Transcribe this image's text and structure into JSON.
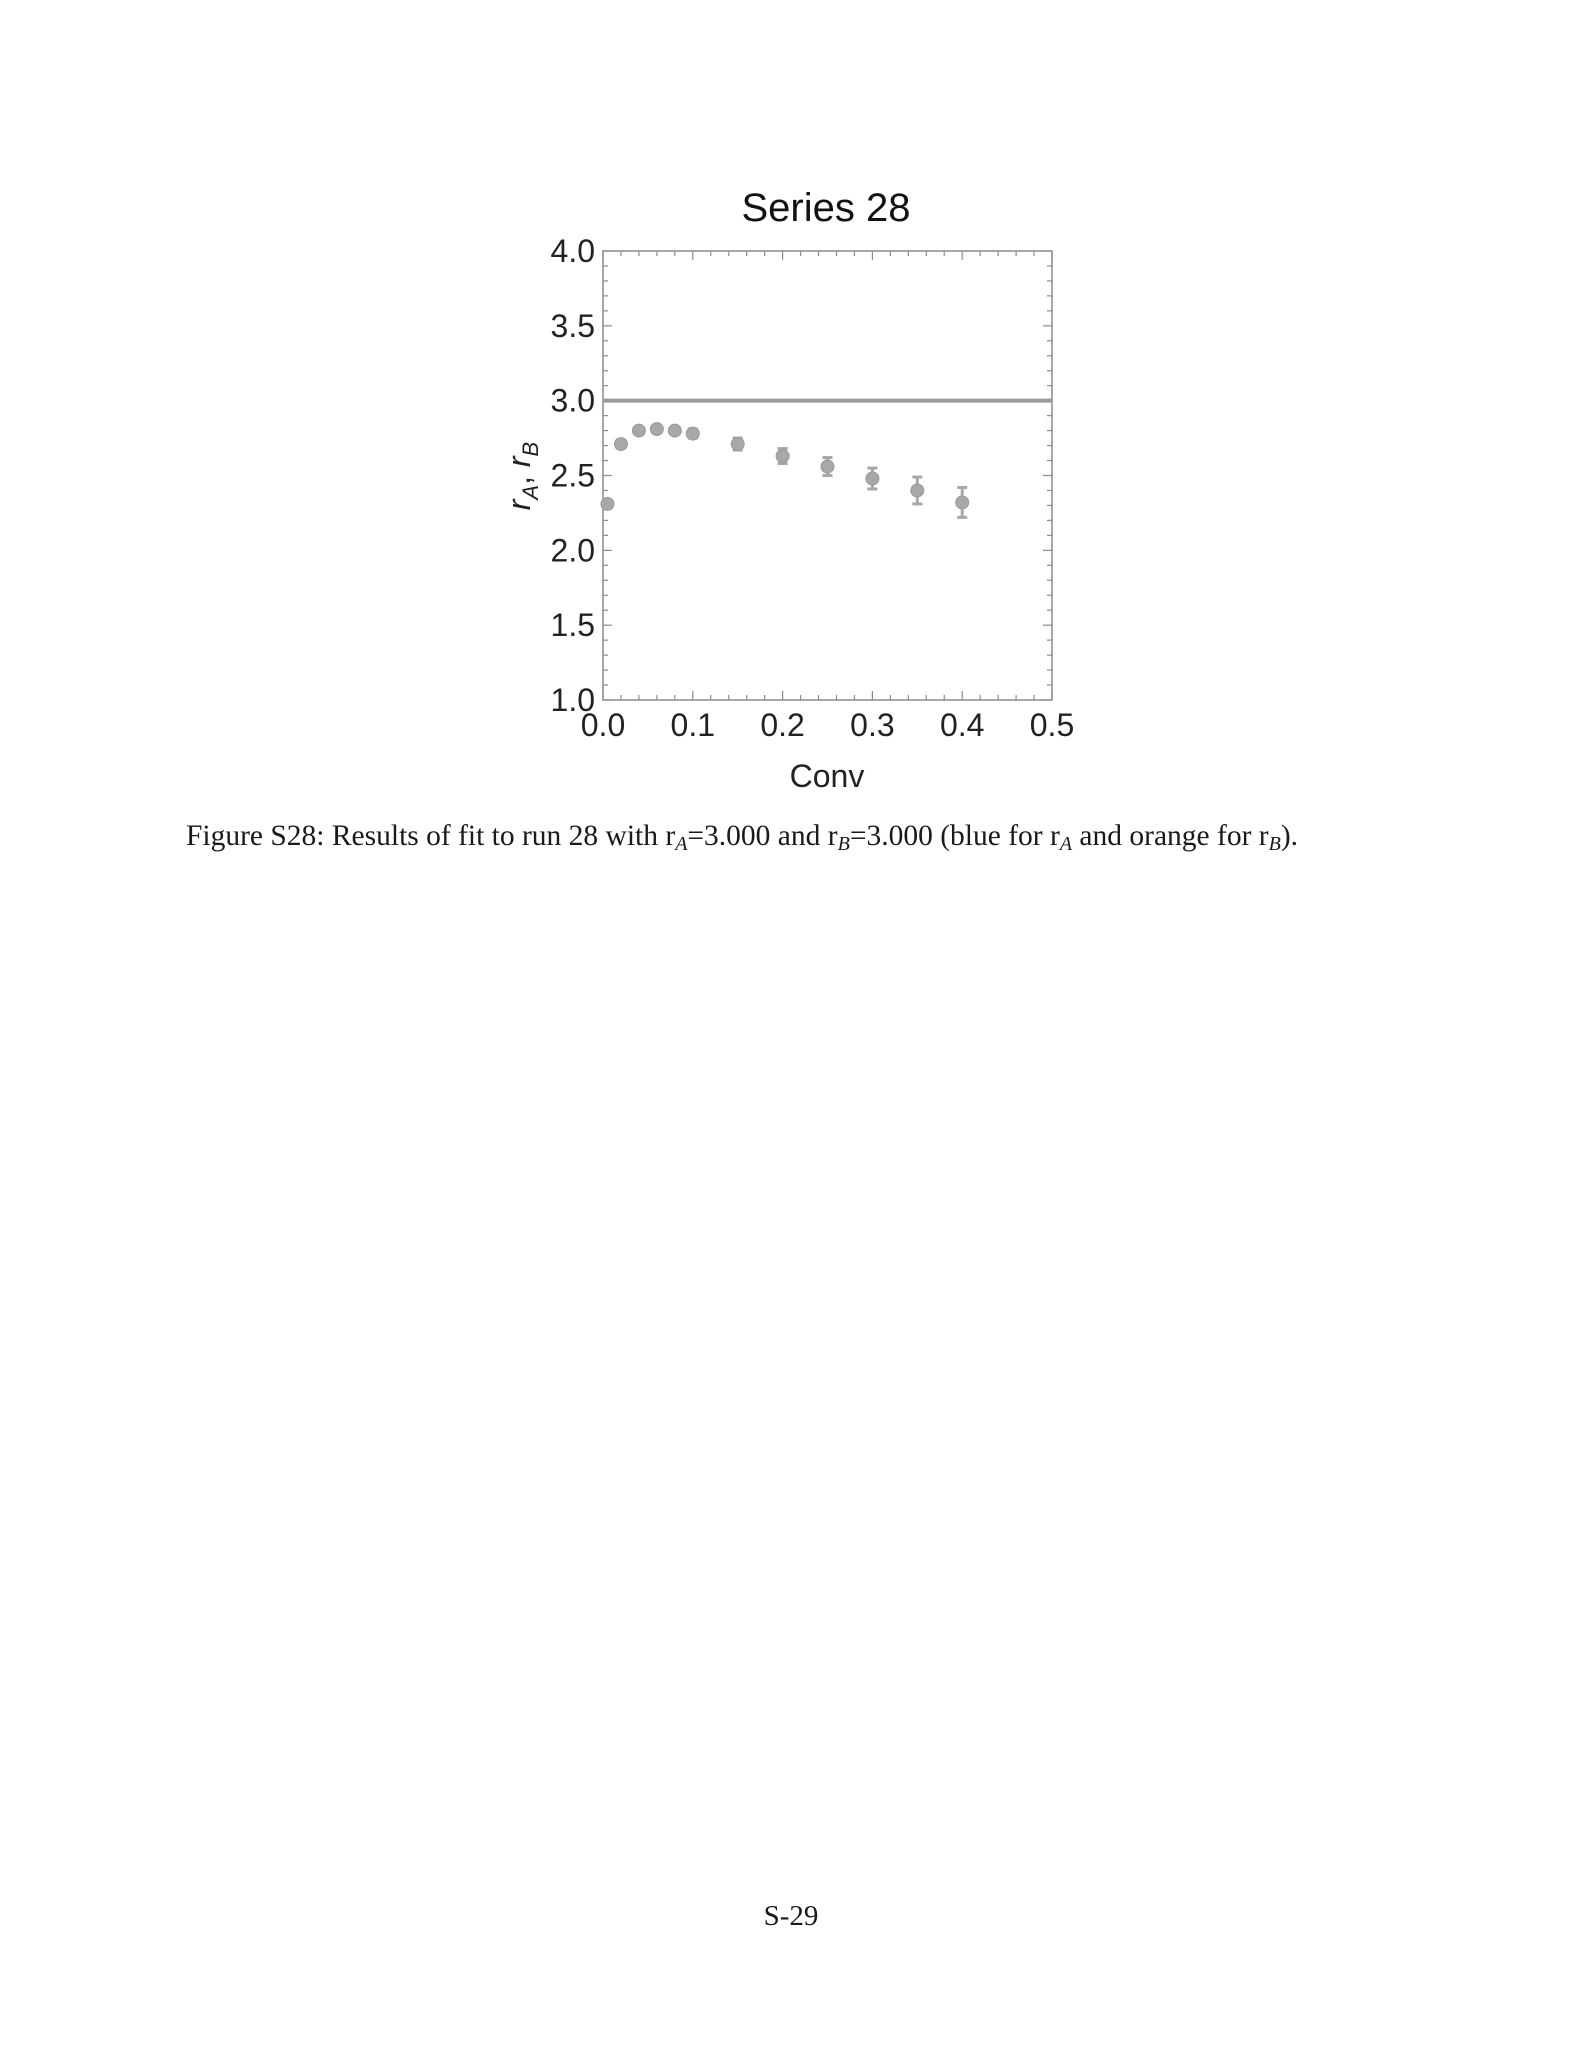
{
  "chart_data": {
    "type": "scatter",
    "title": "Series 28",
    "xlabel": "Conv",
    "ylabel": {
      "r": "r",
      "a": "A",
      "sep": ", ",
      "b": "B"
    },
    "xlim": [
      0.0,
      0.5
    ],
    "ylim": [
      1.0,
      4.0
    ],
    "xticks": [
      0.0,
      0.1,
      0.2,
      0.3,
      0.4,
      0.5
    ],
    "xtick_labels": [
      "0.0",
      "0.1",
      "0.2",
      "0.3",
      "0.4",
      "0.5"
    ],
    "yticks": [
      1.0,
      1.5,
      2.0,
      2.5,
      3.0,
      3.5,
      4.0
    ],
    "ytick_labels": [
      "1.0",
      "1.5",
      "2.0",
      "2.5",
      "3.0",
      "3.5",
      "4.0"
    ],
    "reference_line": 3.0,
    "grid": false,
    "marker_color": "#a8a8a8",
    "line_color": "#9a9a9a",
    "points": [
      {
        "x": 0.005,
        "y": 2.31,
        "err": 0.0
      },
      {
        "x": 0.02,
        "y": 2.71,
        "err": 0.0
      },
      {
        "x": 0.04,
        "y": 2.8,
        "err": 0.0
      },
      {
        "x": 0.06,
        "y": 2.81,
        "err": 0.0
      },
      {
        "x": 0.08,
        "y": 2.8,
        "err": 0.0
      },
      {
        "x": 0.1,
        "y": 2.78,
        "err": 0.03
      },
      {
        "x": 0.15,
        "y": 2.71,
        "err": 0.04
      },
      {
        "x": 0.2,
        "y": 2.63,
        "err": 0.05
      },
      {
        "x": 0.25,
        "y": 2.56,
        "err": 0.06
      },
      {
        "x": 0.3,
        "y": 2.48,
        "err": 0.07
      },
      {
        "x": 0.35,
        "y": 2.4,
        "err": 0.09
      },
      {
        "x": 0.4,
        "y": 2.32,
        "err": 0.1
      }
    ]
  },
  "caption": {
    "prefix": "Figure S28: Results of fit to run 28 with r",
    "sub_a": "A",
    "mid1": "=3.000 and r",
    "sub_b": "B",
    "mid2": "=3.000 (blue for r",
    "sub_a2": "A",
    "mid3": " and orange for r",
    "sub_b2": "B",
    "suffix": ")."
  },
  "page_number": "S-29"
}
